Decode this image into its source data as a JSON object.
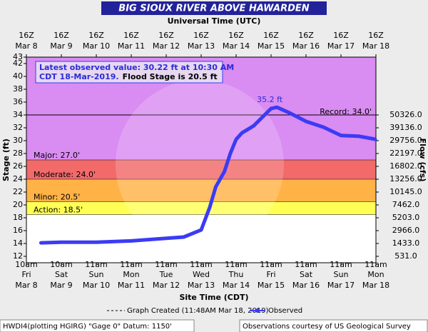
{
  "chart_data": {
    "type": "line",
    "title": "BIG SIOUX RIVER ABOVE HAWARDEN",
    "top_axis_label": "Universal Time (UTC)",
    "x_label": "Site Time (CDT)",
    "y_label": "Stage (ft)",
    "y2_label": "Flow (cfs)",
    "xlim": [
      "2019-03-08T16:00Z",
      "2019-03-18T16:00Z"
    ],
    "xticks": [
      {
        "value": "2019-03-08T16:00Z",
        "utc": "16Z",
        "utc_date": "Mar 8",
        "time": "10am",
        "day": "Fri",
        "date": "Mar 8"
      },
      {
        "value": "2019-03-09T16:00Z",
        "utc": "16Z",
        "utc_date": "Mar 9",
        "time": "10am",
        "day": "Sat",
        "date": "Mar 9"
      },
      {
        "value": "2019-03-10T16:00Z",
        "utc": "16Z",
        "utc_date": "Mar 10",
        "time": "11am",
        "day": "Sun",
        "date": "Mar 10"
      },
      {
        "value": "2019-03-11T16:00Z",
        "utc": "16Z",
        "utc_date": "Mar 11",
        "time": "11am",
        "day": "Mon",
        "date": "Mar 11"
      },
      {
        "value": "2019-03-12T16:00Z",
        "utc": "16Z",
        "utc_date": "Mar 12",
        "time": "11am",
        "day": "Tue",
        "date": "Mar 12"
      },
      {
        "value": "2019-03-13T16:00Z",
        "utc": "16Z",
        "utc_date": "Mar 13",
        "time": "11am",
        "day": "Wed",
        "date": "Mar 13"
      },
      {
        "value": "2019-03-14T16:00Z",
        "utc": "16Z",
        "utc_date": "Mar 14",
        "time": "11am",
        "day": "Thu",
        "date": "Mar 14"
      },
      {
        "value": "2019-03-15T16:00Z",
        "utc": "16Z",
        "utc_date": "Mar 15",
        "time": "11am",
        "day": "Fri",
        "date": "Mar 15"
      },
      {
        "value": "2019-03-16T16:00Z",
        "utc": "16Z",
        "utc_date": "Mar 16",
        "time": "11am",
        "day": "Sat",
        "date": "Mar 16"
      },
      {
        "value": "2019-03-17T16:00Z",
        "utc": "16Z",
        "utc_date": "Mar 17",
        "time": "11am",
        "day": "Sun",
        "date": "Mar 17"
      },
      {
        "value": "2019-03-18T16:00Z",
        "utc": "16Z",
        "utc_date": "Mar 18",
        "time": "11am",
        "day": "Mon",
        "date": "Mar 18"
      }
    ],
    "ylim": [
      11,
      43
    ],
    "yticks": [
      43,
      42,
      40,
      38,
      36,
      34,
      32,
      30,
      28,
      26,
      24,
      22,
      20,
      18,
      16,
      14,
      12
    ],
    "flow_ticks": [
      {
        "stage": 34,
        "value": 50326,
        "label": "50326.0"
      },
      {
        "stage": 32,
        "value": 39136,
        "label": "39136.0"
      },
      {
        "stage": 30,
        "value": 29756,
        "label": "29756.0"
      },
      {
        "stage": 28,
        "value": 22197,
        "label": "22197.0"
      },
      {
        "stage": 26,
        "value": 16802,
        "label": "16802.0"
      },
      {
        "stage": 24,
        "value": 13256,
        "label": "13256.0"
      },
      {
        "stage": 22,
        "value": 10145,
        "label": "10145.0"
      },
      {
        "stage": 20,
        "value": 7462,
        "label": "7462.0"
      },
      {
        "stage": 18,
        "value": 5203,
        "label": "5203.0"
      },
      {
        "stage": 16,
        "value": 2966,
        "label": "2966.0"
      },
      {
        "stage": 14,
        "value": 1433,
        "label": "1433.0"
      },
      {
        "stage": 12,
        "value": 531,
        "label": "531.0"
      }
    ],
    "flood_categories": [
      {
        "value": 18.5,
        "label": "Action: 18.5'",
        "color": "#ffff55"
      },
      {
        "value": 20.5,
        "label": "Minor: 20.5'",
        "color": "#ffb347"
      },
      {
        "value": 24,
        "label": "Moderate: 24.0'",
        "color": "#f26a6a"
      },
      {
        "value": 27,
        "label": "Major: 27.0'",
        "color": "#d98cf2"
      }
    ],
    "record": {
      "value": 34.0,
      "label": "Record: 34.0'"
    },
    "peak": {
      "value": 35.2,
      "label": "35.2 ft",
      "x": "2019-03-15T20:00Z"
    },
    "annotation": {
      "line1": "Latest observed value: 30.22 ft at 10:30 AM",
      "line2a": "CDT 18-Mar-2019.",
      "line2b": "Flood Stage is 20.5 ft"
    },
    "graph_created": "Graph Created (11:48AM Mar 18, 2019)",
    "series": [
      {
        "name": "Observed",
        "color": "#3b3bf5",
        "x": [
          "2019-03-09T02:00Z",
          "2019-03-09T16:00Z",
          "2019-03-10T16:00Z",
          "2019-03-11T16:00Z",
          "2019-03-12T16:00Z",
          "2019-03-13T04:00Z",
          "2019-03-13T16:00Z",
          "2019-03-13T22:00Z",
          "2019-03-14T02:00Z",
          "2019-03-14T08:00Z",
          "2019-03-14T12:00Z",
          "2019-03-14T16:00Z",
          "2019-03-14T20:00Z",
          "2019-03-15T04:00Z",
          "2019-03-15T16:00Z",
          "2019-03-15T20:00Z",
          "2019-03-16T04:00Z",
          "2019-03-16T16:00Z",
          "2019-03-17T04:00Z",
          "2019-03-17T16:00Z",
          "2019-03-18T04:00Z",
          "2019-03-18T15:30Z"
        ],
        "values": [
          14.1,
          14.2,
          14.2,
          14.4,
          14.8,
          15.0,
          16.1,
          19.7,
          22.8,
          25.2,
          28.0,
          30.2,
          31.2,
          32.3,
          35.0,
          35.2,
          34.4,
          33.0,
          32.1,
          30.8,
          30.7,
          30.22
        ]
      }
    ],
    "footer_left": "HWDI4(plotting HGIRG) \"Gage 0\" Datum: 1150'",
    "footer_right": "Observations courtesy of US Geological Survey"
  }
}
